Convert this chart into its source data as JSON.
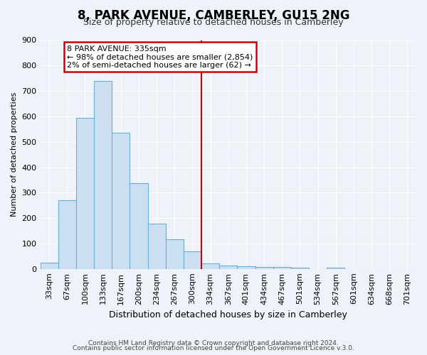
{
  "title": "8, PARK AVENUE, CAMBERLEY, GU15 2NG",
  "subtitle": "Size of property relative to detached houses in Camberley",
  "xlabel": "Distribution of detached houses by size in Camberley",
  "ylabel": "Number of detached properties",
  "bin_labels": [
    "33sqm",
    "67sqm",
    "100sqm",
    "133sqm",
    "167sqm",
    "200sqm",
    "234sqm",
    "267sqm",
    "300sqm",
    "334sqm",
    "367sqm",
    "401sqm",
    "434sqm",
    "467sqm",
    "501sqm",
    "534sqm",
    "567sqm",
    "601sqm",
    "634sqm",
    "668sqm",
    "701sqm"
  ],
  "bar_heights": [
    25,
    270,
    595,
    740,
    535,
    338,
    177,
    118,
    69,
    22,
    14,
    11,
    9,
    8,
    6,
    0,
    5,
    0,
    0,
    0,
    0
  ],
  "bar_color": "#ccdff2",
  "bar_edgecolor": "#6aaed6",
  "marker_bin_index": 9,
  "marker_color": "#cc0000",
  "annotation_title": "8 PARK AVENUE: 335sqm",
  "annotation_line1": "← 98% of detached houses are smaller (2,854)",
  "annotation_line2": "2% of semi-detached houses are larger (62) →",
  "annotation_box_edgecolor": "#cc0000",
  "ylim": [
    0,
    900
  ],
  "yticks": [
    0,
    100,
    200,
    300,
    400,
    500,
    600,
    700,
    800,
    900
  ],
  "footer_line1": "Contains HM Land Registry data © Crown copyright and database right 2024.",
  "footer_line2": "Contains public sector information licensed under the Open Government Licence v.3.0.",
  "bg_color": "#eef2f9",
  "grid_color": "#ffffff",
  "title_fontsize": 12,
  "subtitle_fontsize": 9,
  "xlabel_fontsize": 9,
  "ylabel_fontsize": 8,
  "tick_fontsize": 8,
  "footer_fontsize": 6.5
}
